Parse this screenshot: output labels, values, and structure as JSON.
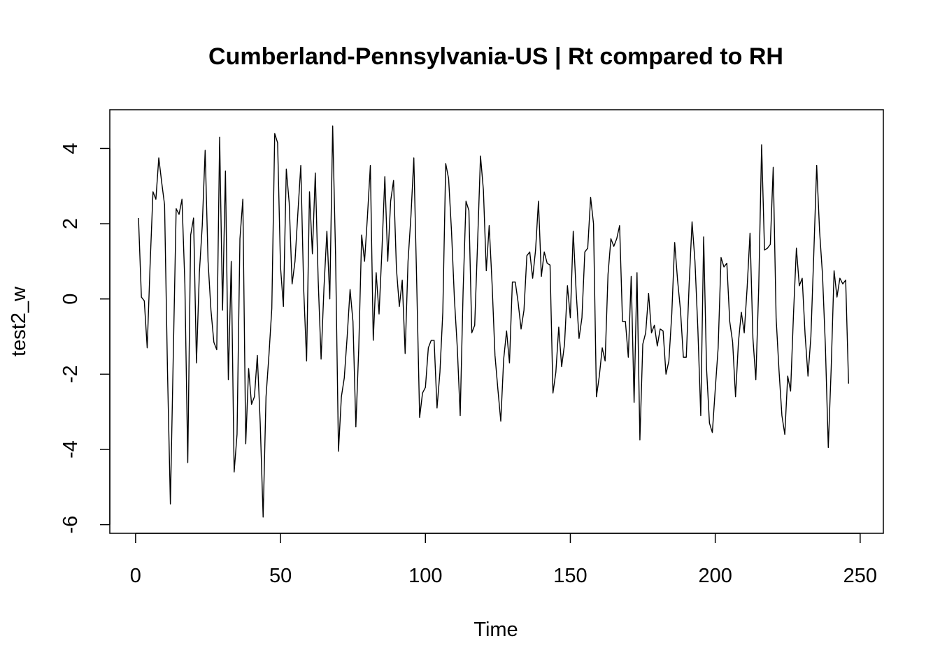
{
  "chart_data": {
    "type": "line",
    "title": "Cumberland-Pennsylvania-US | Rt compared to RH",
    "xlabel": "Time",
    "ylabel": "test2_w",
    "xlim": [
      -8.9,
      258.0
    ],
    "ylim": [
      -6.23,
      5.03
    ],
    "xticks": [
      0,
      50,
      100,
      150,
      200,
      250
    ],
    "yticks": [
      -6,
      -4,
      -2,
      0,
      2,
      4
    ],
    "xtick_labels": [
      "0",
      "50",
      "100",
      "150",
      "200",
      "250"
    ],
    "ytick_labels": [
      "-6",
      "-4",
      "-2",
      "0",
      "2",
      "4"
    ],
    "grid": false,
    "line_color": "#000000",
    "series": [
      {
        "x_start": 1,
        "values": [
          2.15,
          0.05,
          -0.05,
          -1.3,
          0.9,
          2.85,
          2.65,
          3.75,
          3.1,
          2.5,
          -1.9,
          -5.45,
          -1.5,
          2.4,
          2.25,
          2.65,
          0.4,
          -4.35,
          1.7,
          2.15,
          -1.7,
          0.7,
          1.95,
          3.95,
          1.0,
          -0.3,
          -1.15,
          -1.35,
          4.3,
          -0.3,
          3.4,
          -2.15,
          1.0,
          -4.6,
          -3.6,
          1.6,
          2.65,
          -3.85,
          -1.85,
          -2.8,
          -2.6,
          -1.5,
          -3.3,
          -5.8,
          -2.6,
          -1.5,
          -0.25,
          4.4,
          4.15,
          0.85,
          -0.2,
          3.45,
          2.55,
          0.4,
          1.0,
          2.3,
          3.55,
          0.25,
          -1.65,
          2.85,
          1.2,
          3.35,
          0.5,
          -1.6,
          0.3,
          1.8,
          0.0,
          4.6,
          1.15,
          -4.05,
          -2.6,
          -2.1,
          -1.0,
          0.25,
          -0.6,
          -3.4,
          -1.3,
          1.7,
          1.0,
          2.2,
          3.55,
          -1.1,
          0.7,
          -0.4,
          1.3,
          3.25,
          1.0,
          2.6,
          3.15,
          0.8,
          -0.2,
          0.5,
          -1.45,
          1.0,
          2.2,
          3.75,
          0.4,
          -3.15,
          -2.5,
          -2.35,
          -1.3,
          -1.1,
          -1.1,
          -2.9,
          -1.95,
          -0.35,
          3.6,
          3.2,
          1.8,
          0.0,
          -1.3,
          -3.1,
          0.2,
          2.6,
          2.35,
          -0.9,
          -0.7,
          1.5,
          3.8,
          2.9,
          0.75,
          1.95,
          0.4,
          -1.5,
          -2.4,
          -3.25,
          -1.6,
          -0.85,
          -1.7,
          0.45,
          0.45,
          -0.1,
          -0.8,
          -0.3,
          1.15,
          1.25,
          0.55,
          1.3,
          2.6,
          0.6,
          1.25,
          0.95,
          0.9,
          -2.5,
          -1.95,
          -0.75,
          -1.8,
          -1.2,
          0.35,
          -0.5,
          1.8,
          0.2,
          -1.05,
          -0.5,
          1.25,
          1.35,
          2.7,
          2.0,
          -2.6,
          -2.05,
          -1.3,
          -1.65,
          0.65,
          1.6,
          1.4,
          1.6,
          1.95,
          -0.6,
          -0.6,
          -1.55,
          0.6,
          -2.75,
          0.7,
          -3.75,
          -1.2,
          -0.9,
          0.15,
          -0.9,
          -0.7,
          -1.25,
          -0.8,
          -0.85,
          -2.0,
          -1.65,
          -0.4,
          1.5,
          0.5,
          -0.3,
          -1.55,
          -1.55,
          0.4,
          2.05,
          1.0,
          -0.8,
          -3.1,
          1.65,
          -1.85,
          -3.3,
          -3.55,
          -2.4,
          -1.3,
          1.1,
          0.85,
          0.95,
          -0.6,
          -1.15,
          -2.6,
          -1.15,
          -0.35,
          -0.9,
          0.3,
          1.75,
          -1.05,
          -2.15,
          0.3,
          4.1,
          1.3,
          1.35,
          1.45,
          3.5,
          -0.5,
          -1.9,
          -3.1,
          -3.6,
          -2.05,
          -2.45,
          -0.4,
          1.35,
          0.35,
          0.55,
          -0.95,
          -2.05,
          -1.0,
          1.2,
          3.55,
          1.8,
          0.65,
          -1.25,
          -3.95,
          -1.85,
          0.75,
          0.05,
          0.55,
          0.4,
          0.5,
          -2.25
        ]
      }
    ]
  }
}
